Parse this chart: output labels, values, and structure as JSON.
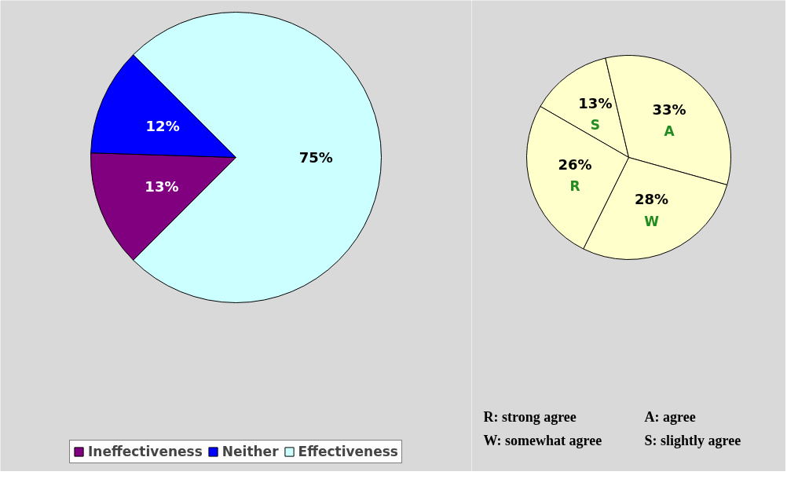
{
  "chart_data": [
    {
      "type": "pie",
      "categories": [
        "Ineffectiveness",
        "Neither",
        "Effectiveness"
      ],
      "values": [
        13,
        12,
        75
      ],
      "colors": [
        "#800080",
        "#0000ff",
        "#ccffff"
      ],
      "value_labels": [
        "13%",
        "12%",
        "75%"
      ],
      "legend": "bottom"
    },
    {
      "type": "pie",
      "categories": [
        "S",
        "A",
        "W",
        "R"
      ],
      "values": [
        13,
        33,
        28,
        26
      ],
      "colors": [
        "#ffffcc",
        "#ffffcc",
        "#ffffcc",
        "#ffffcc"
      ],
      "value_labels": [
        "13%",
        "33%",
        "28%",
        "26%"
      ],
      "annotations": [
        "R: strong agree",
        "A: agree",
        "W: somewhat agree",
        "S: slightly agree"
      ]
    }
  ]
}
